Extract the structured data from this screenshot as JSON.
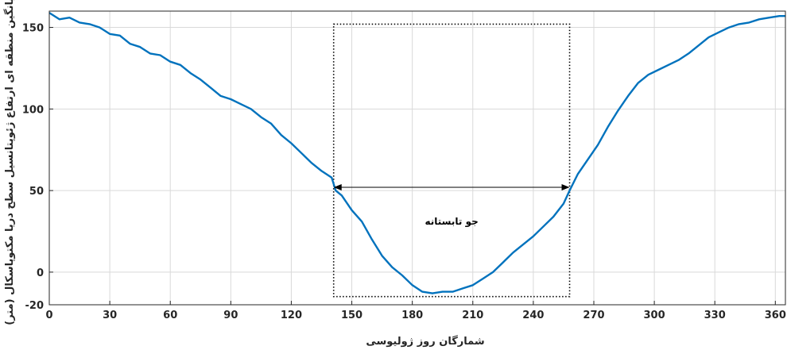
{
  "chart_data": {
    "type": "line",
    "title": "",
    "xlabel": "شمارگان روز ژولیوسی",
    "ylabel": "میانگین منطقه ای ارتفاع ژئوپتانسیل سطح دریا مکتوپاسکال (متر)",
    "xlim": [
      0,
      365
    ],
    "ylim": [
      -20,
      160
    ],
    "xticks": [
      0,
      30,
      60,
      90,
      120,
      150,
      180,
      210,
      240,
      270,
      300,
      330,
      360
    ],
    "xtick_labels": [
      "0",
      "30",
      "60",
      "90",
      "120",
      "150",
      "180",
      "210",
      "240",
      "270",
      "300",
      "330",
      "360"
    ],
    "yticks": [
      -20,
      0,
      50,
      100,
      150
    ],
    "ytick_labels": [
      "-20",
      "0",
      "50",
      "100",
      "150"
    ],
    "grid": true,
    "line_color": "#0072BD",
    "series": [
      {
        "x": [
          0,
          5,
          10,
          15,
          20,
          25,
          30,
          35,
          40,
          45,
          50,
          55,
          60,
          65,
          70,
          75,
          80,
          85,
          90,
          95,
          100,
          105,
          110,
          115,
          120,
          125,
          130,
          135,
          140,
          142,
          145,
          150,
          155,
          160,
          165,
          170,
          175,
          180,
          185,
          190,
          195,
          200,
          205,
          210,
          215,
          220,
          225,
          230,
          235,
          240,
          245,
          250,
          255,
          258,
          262,
          267,
          272,
          277,
          282,
          287,
          292,
          297,
          302,
          307,
          312,
          317,
          322,
          327,
          332,
          337,
          342,
          347,
          352,
          357,
          362,
          365
        ],
        "values": [
          159,
          155,
          156,
          153,
          152,
          150,
          146,
          145,
          140,
          138,
          134,
          133,
          129,
          127,
          122,
          118,
          113,
          108,
          106,
          103,
          100,
          95,
          91,
          84,
          79,
          73,
          67,
          62,
          58,
          50,
          47,
          38,
          31,
          20,
          10,
          3,
          -2,
          -8,
          -12,
          -13,
          -12,
          -12,
          -10,
          -8,
          -4,
          0,
          6,
          12,
          17,
          22,
          28,
          34,
          42,
          50,
          60,
          69,
          78,
          89,
          99,
          108,
          116,
          121,
          124,
          127,
          130,
          134,
          139,
          144,
          147,
          150,
          152,
          153,
          155,
          156,
          157,
          157
        ]
      }
    ],
    "annotation": {
      "label": "جو تابستانه",
      "x_start": 141,
      "x_end": 258,
      "y_arrow": 52,
      "box": {
        "x_min": 141,
        "x_max": 258,
        "y_min": -15,
        "y_max": 152
      }
    }
  }
}
